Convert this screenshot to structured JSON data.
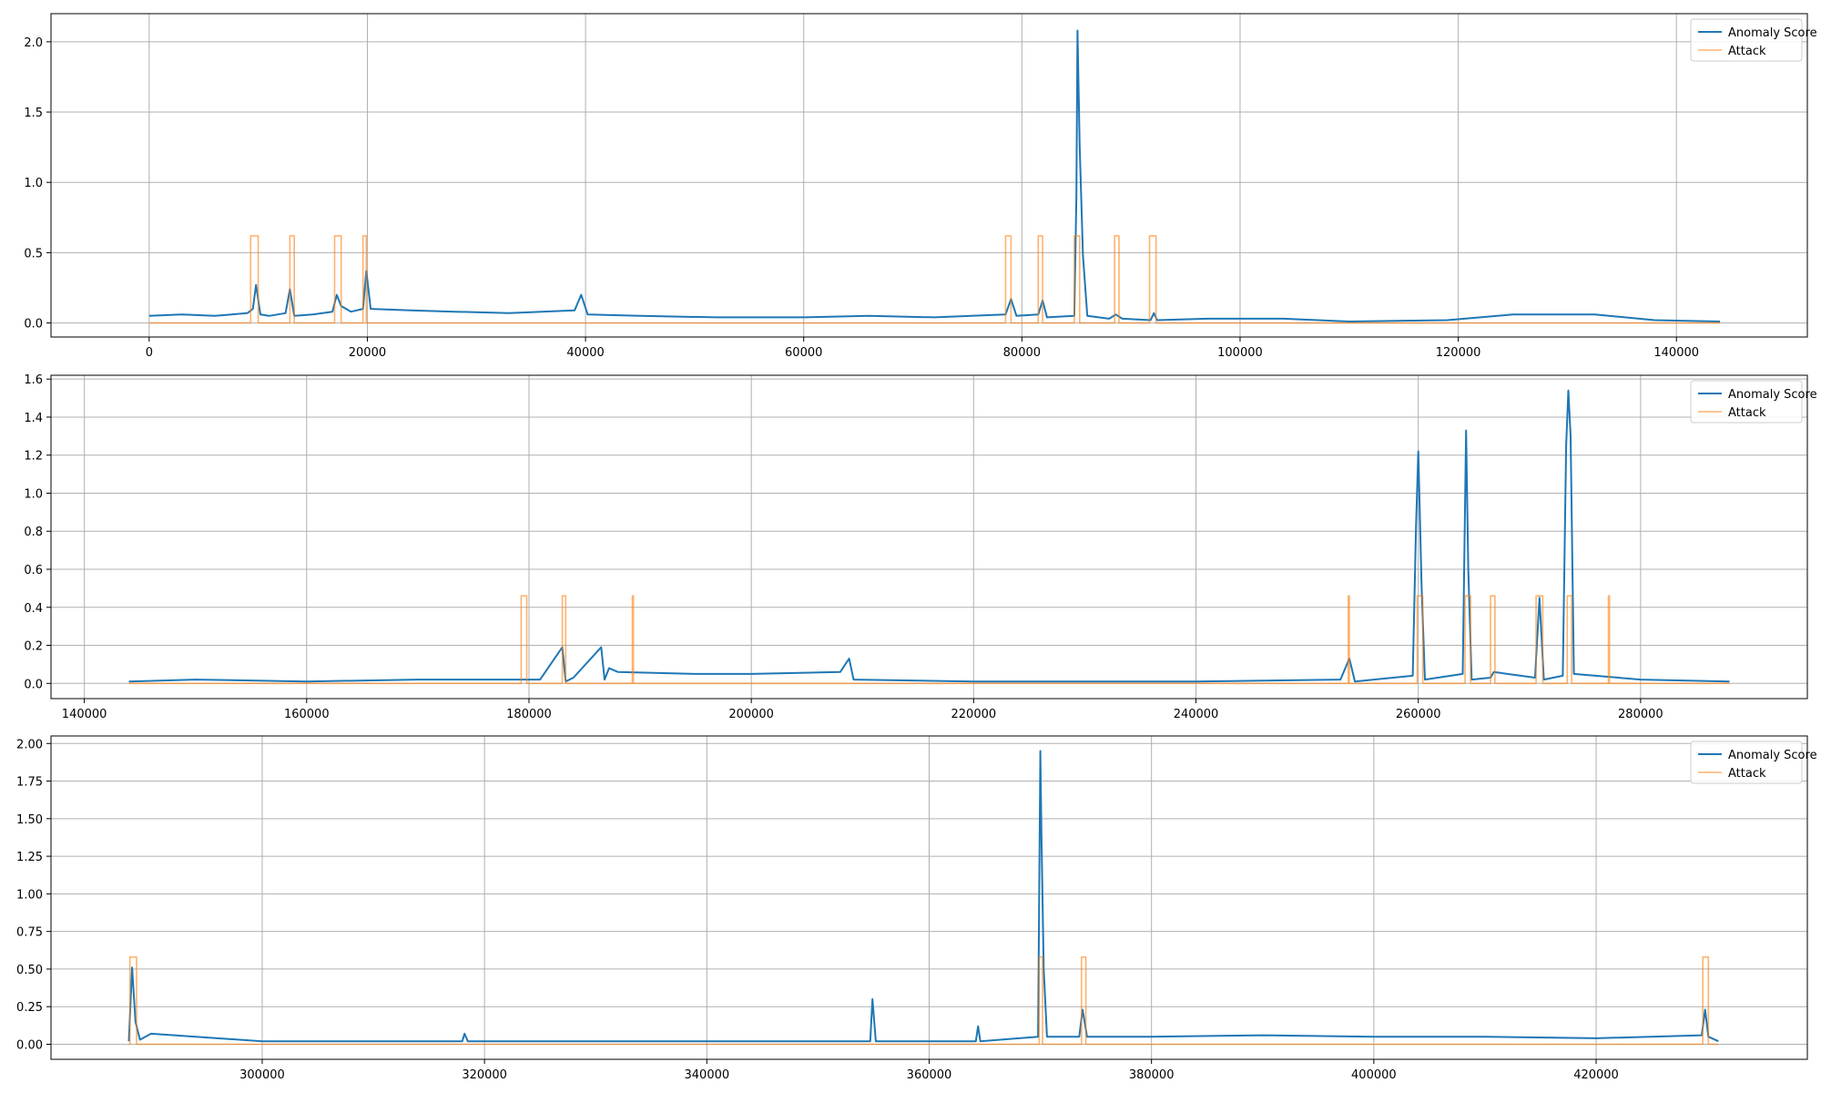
{
  "colors": {
    "score": "#1f77b4",
    "attack": "#ff7f0e",
    "grid": "#b0b0b0",
    "axes": "#000000"
  },
  "chart_data": [
    {
      "type": "line",
      "title": "",
      "xlabel": "",
      "ylabel": "",
      "xlim": [
        -9000,
        152000
      ],
      "ylim": [
        -0.1,
        2.2
      ],
      "xticks": [
        0,
        20000,
        40000,
        60000,
        80000,
        100000,
        120000,
        140000
      ],
      "yticks": [
        0.0,
        0.5,
        1.0,
        1.5,
        2.0
      ],
      "ytick_labels": [
        "0.0",
        "0.5",
        "1.0",
        "1.5",
        "2.0"
      ],
      "grid": true,
      "legend_position": "top-right",
      "series": [
        {
          "name": "Anomaly Score",
          "x": [
            0,
            3000,
            6000,
            9000,
            9500,
            9800,
            10200,
            11000,
            12500,
            12900,
            13300,
            15000,
            16800,
            17200,
            17600,
            18500,
            19600,
            19900,
            20300,
            24000,
            28000,
            33000,
            36000,
            39000,
            39600,
            40200,
            45000,
            52000,
            60000,
            66000,
            72000,
            78500,
            79000,
            79500,
            81500,
            81900,
            82300,
            84800,
            85000,
            85100,
            85300,
            85600,
            86000,
            88000,
            88600,
            89200,
            91800,
            92100,
            92400,
            97000,
            104000,
            110000,
            119000,
            125000,
            132500,
            138000,
            144000
          ],
          "values": [
            0.05,
            0.06,
            0.05,
            0.07,
            0.1,
            0.27,
            0.06,
            0.05,
            0.07,
            0.24,
            0.05,
            0.06,
            0.08,
            0.2,
            0.12,
            0.08,
            0.1,
            0.37,
            0.1,
            0.09,
            0.08,
            0.07,
            0.08,
            0.09,
            0.2,
            0.06,
            0.05,
            0.04,
            0.04,
            0.05,
            0.04,
            0.06,
            0.17,
            0.05,
            0.06,
            0.16,
            0.04,
            0.05,
            0.9,
            2.08,
            1.26,
            0.48,
            0.05,
            0.03,
            0.06,
            0.03,
            0.02,
            0.07,
            0.02,
            0.03,
            0.03,
            0.01,
            0.02,
            0.06,
            0.06,
            0.02,
            0.01
          ]
        },
        {
          "name": "Attack",
          "x": [
            0,
            9300,
            9300,
            10000,
            10000,
            12900,
            12900,
            13300,
            13300,
            17000,
            17000,
            17600,
            17600,
            19600,
            19600,
            19900,
            19900,
            78500,
            78500,
            79000,
            79000,
            81500,
            81500,
            81900,
            81900,
            84800,
            84800,
            85300,
            85300,
            88500,
            88500,
            88900,
            88900,
            91700,
            91700,
            92300,
            92300,
            144000
          ],
          "values": [
            0,
            0,
            0.62,
            0.62,
            0,
            0,
            0.62,
            0.62,
            0,
            0,
            0.62,
            0.62,
            0,
            0,
            0.62,
            0.62,
            0,
            0,
            0.62,
            0.62,
            0,
            0,
            0.62,
            0.62,
            0,
            0,
            0.62,
            0.62,
            0,
            0,
            0.62,
            0.62,
            0,
            0,
            0.62,
            0.62,
            0,
            0
          ]
        }
      ]
    },
    {
      "type": "line",
      "title": "",
      "xlabel": "",
      "ylabel": "",
      "xlim": [
        137000,
        295000
      ],
      "ylim": [
        -0.08,
        1.62
      ],
      "xticks": [
        140000,
        160000,
        180000,
        200000,
        220000,
        240000,
        260000,
        280000
      ],
      "yticks": [
        0.0,
        0.2,
        0.4,
        0.6,
        0.8,
        1.0,
        1.2,
        1.4,
        1.6
      ],
      "ytick_labels": [
        "0.0",
        "0.2",
        "0.4",
        "0.6",
        "0.8",
        "1.0",
        "1.2",
        "1.4",
        "1.6"
      ],
      "grid": true,
      "legend_position": "top-right",
      "series": [
        {
          "name": "Anomaly Score",
          "x": [
            144000,
            150000,
            160000,
            170000,
            181000,
            183000,
            183300,
            184000,
            186500,
            186800,
            187200,
            188000,
            195000,
            200000,
            208000,
            208800,
            209200,
            220000,
            240000,
            253000,
            253800,
            254300,
            259500,
            259800,
            260000,
            260300,
            260600,
            264000,
            264300,
            264500,
            264800,
            266500,
            266800,
            270500,
            270900,
            271300,
            273000,
            273300,
            273500,
            273700,
            274000,
            280000,
            288000
          ],
          "values": [
            0.01,
            0.02,
            0.01,
            0.02,
            0.02,
            0.19,
            0.01,
            0.03,
            0.19,
            0.02,
            0.08,
            0.06,
            0.05,
            0.05,
            0.06,
            0.13,
            0.02,
            0.01,
            0.01,
            0.02,
            0.13,
            0.01,
            0.04,
            0.82,
            1.22,
            0.5,
            0.02,
            0.05,
            1.33,
            0.6,
            0.02,
            0.03,
            0.06,
            0.03,
            0.45,
            0.02,
            0.04,
            1.25,
            1.54,
            1.3,
            0.05,
            0.02,
            0.01
          ]
        },
        {
          "name": "Attack",
          "x": [
            144000,
            179300,
            179300,
            179800,
            179800,
            183000,
            183000,
            183300,
            183300,
            189300,
            189300,
            189400,
            189400,
            253700,
            253700,
            253800,
            253800,
            259900,
            259900,
            260400,
            260400,
            264200,
            264200,
            264700,
            264700,
            266500,
            266500,
            266900,
            266900,
            270600,
            270600,
            271200,
            271200,
            273400,
            273400,
            273800,
            273800,
            277100,
            277100,
            277200,
            277200,
            288000
          ],
          "values": [
            0,
            0,
            0.46,
            0.46,
            0,
            0,
            0.46,
            0.46,
            0,
            0,
            0.46,
            0.46,
            0,
            0,
            0.46,
            0.46,
            0,
            0,
            0.46,
            0.46,
            0,
            0,
            0.46,
            0.46,
            0,
            0,
            0.46,
            0.46,
            0,
            0,
            0.46,
            0.46,
            0,
            0,
            0.46,
            0.46,
            0,
            0,
            0.46,
            0.46,
            0,
            0
          ]
        }
      ]
    },
    {
      "type": "line",
      "title": "",
      "xlabel": "",
      "ylabel": "",
      "xlim": [
        281000,
        439000
      ],
      "ylim": [
        -0.1,
        2.05
      ],
      "xticks": [
        300000,
        320000,
        340000,
        360000,
        380000,
        400000,
        420000
      ],
      "yticks": [
        0.0,
        0.25,
        0.5,
        0.75,
        1.0,
        1.25,
        1.5,
        1.75,
        2.0
      ],
      "ytick_labels": [
        "0.00",
        "0.25",
        "0.50",
        "0.75",
        "1.00",
        "1.25",
        "1.50",
        "1.75",
        "2.00"
      ],
      "grid": true,
      "legend_position": "top-right",
      "series": [
        {
          "name": "Anomaly Score",
          "x": [
            288000,
            288300,
            288600,
            289000,
            290000,
            300000,
            318000,
            318200,
            318500,
            340000,
            354700,
            354900,
            355200,
            364200,
            364400,
            364600,
            369800,
            370000,
            370100,
            370300,
            370600,
            373500,
            373800,
            374200,
            380000,
            390000,
            400000,
            410000,
            420000,
            429500,
            429800,
            430100,
            431000
          ],
          "values": [
            0.02,
            0.51,
            0.15,
            0.03,
            0.07,
            0.02,
            0.02,
            0.07,
            0.02,
            0.02,
            0.02,
            0.3,
            0.02,
            0.02,
            0.12,
            0.02,
            0.05,
            1.95,
            1.4,
            0.5,
            0.05,
            0.05,
            0.23,
            0.05,
            0.05,
            0.06,
            0.05,
            0.05,
            0.04,
            0.06,
            0.23,
            0.05,
            0.02
          ]
        },
        {
          "name": "Attack",
          "x": [
            288000,
            288100,
            288100,
            288700,
            288700,
            369900,
            369900,
            370200,
            370200,
            373700,
            373700,
            374100,
            374100,
            429600,
            429600,
            430100,
            430100,
            431000
          ],
          "values": [
            0,
            0,
            0.58,
            0.58,
            0,
            0,
            0.58,
            0.58,
            0,
            0,
            0.58,
            0.58,
            0,
            0,
            0.58,
            0.58,
            0,
            0
          ]
        }
      ]
    }
  ]
}
